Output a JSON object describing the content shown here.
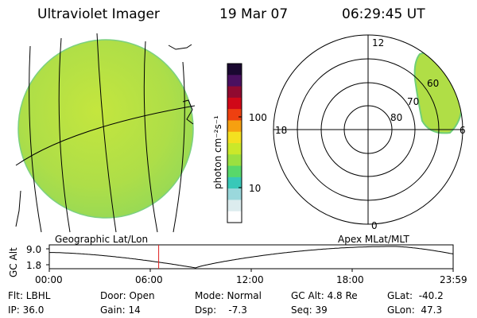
{
  "header": {
    "instrument": "Ultraviolet Imager",
    "date": "19 Mar 07",
    "time": "06:29:45 UT"
  },
  "colorbar": {
    "unit_label": "photon cm⁻²s⁻¹",
    "scale": "log",
    "ticks": [
      "100",
      "10"
    ],
    "colors": [
      "#1a0830",
      "#4a1060",
      "#900a30",
      "#d00818",
      "#ee4010",
      "#f6a010",
      "#f4e020",
      "#cbe82a",
      "#9be040",
      "#58d86a",
      "#38c8b8",
      "#9ad8dc",
      "#dcecee",
      "#ffffff"
    ]
  },
  "geo_panel": {
    "label": "Geographic Lat/Lon",
    "image_color": "#b8e04a"
  },
  "polar_panel": {
    "label": "Apex  MLat/MLT",
    "mlt_labels": [
      "12",
      "18",
      "6",
      "0"
    ],
    "lat_labels": [
      "80",
      "70",
      "60"
    ]
  },
  "altitude_plot": {
    "ylabel": "GC Alt",
    "yticks": [
      "9.0",
      "1.8"
    ],
    "xticks": [
      "00:00",
      "06:00",
      "12:00",
      "18:00",
      "23:59"
    ],
    "current_time_marker_hours": 6.5,
    "marker_color": "#e02020"
  },
  "info": {
    "filter": "Flt: LBHL",
    "ip": "IP: 36.0",
    "door": "Door: Open",
    "gain": "Gain: 14",
    "mode": "Mode: Normal",
    "dsp": "Dsp:    -7.3",
    "gc_alt": "GC Alt: 4.8 Re",
    "seq": "Seq: 39",
    "glat": "GLat:  -40.2",
    "glon": "GLon:  47.3"
  }
}
